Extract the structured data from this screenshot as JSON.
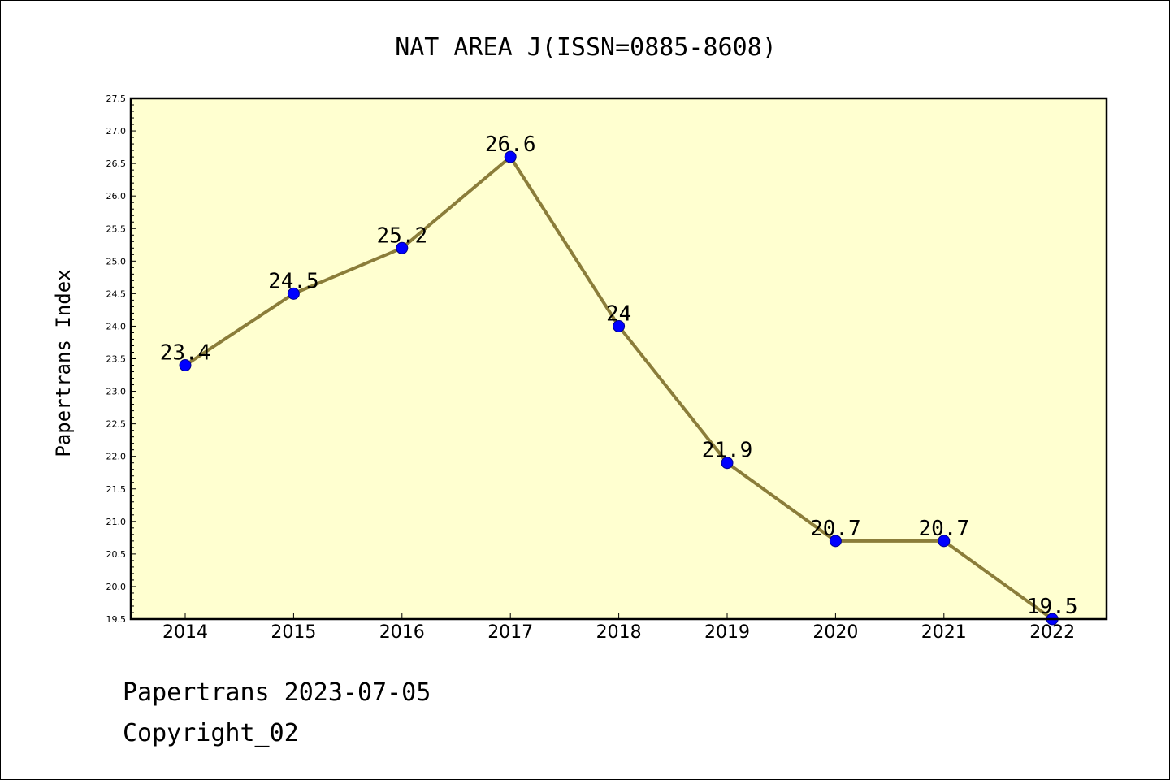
{
  "chart_data": {
    "type": "line",
    "title": "NAT AREA J(ISSN=0885-8608)",
    "xlabel": "",
    "ylabel": "Papertrans Index",
    "categories": [
      "2014",
      "2015",
      "2016",
      "2017",
      "2018",
      "2019",
      "2020",
      "2021",
      "2022"
    ],
    "series": [
      {
        "values": [
          23.4,
          24.5,
          25.2,
          26.6,
          24.0,
          21.9,
          20.7,
          20.7,
          19.5
        ],
        "labels": [
          "23.4",
          "24.5",
          "25.2",
          "26.6",
          "24",
          "21.9",
          "20.7",
          "20.7",
          "19.5"
        ],
        "line_color": "#8b7d3a",
        "marker_color": "#0000ff"
      }
    ],
    "ylim": [
      19.5,
      27.5
    ],
    "yticks": [
      "19.5",
      "20.0",
      "20.5",
      "21.0",
      "21.5",
      "22.0",
      "22.5",
      "23.0",
      "23.5",
      "24.0",
      "24.5",
      "25.0",
      "25.5",
      "26.0",
      "26.5",
      "27.0",
      "27.5"
    ],
    "grid": false,
    "plot_background": "#ffffd0"
  },
  "footer": {
    "line1": "Papertrans 2023-07-05",
    "line2": "Copyright_02"
  }
}
